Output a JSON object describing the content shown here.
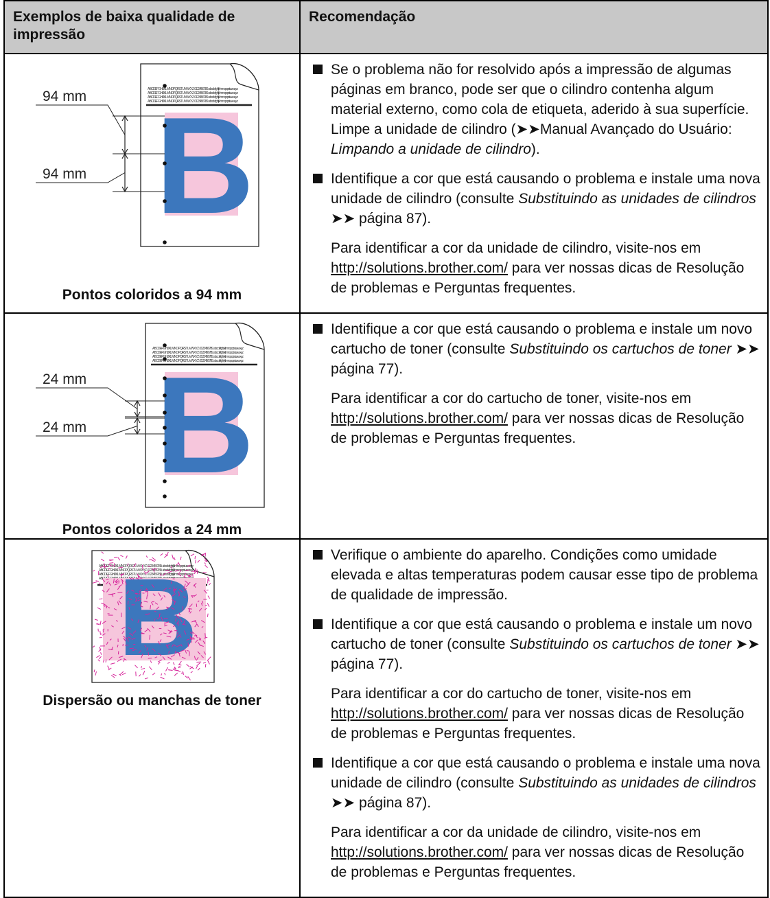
{
  "header": {
    "col1": "Exemplos de baixa qualidade de impressão",
    "col2": "Recomendação"
  },
  "rows": [
    {
      "figure": {
        "letter": "B",
        "sample_text": "ABCDEFGHIJKLMNOPQRSTUVWXYZ. 0123456789. abcdefghijklmnopqrstuvwxyz",
        "labels": [
          "94 mm",
          "94 mm"
        ],
        "caption": "Pontos coloridos a 94 mm"
      },
      "paragraphs": [
        {
          "bullet": true,
          "segments": [
            {
              "text": "Se o problema não for resolvido após a impressão de algumas páginas em branco, pode ser que o cilindro contenha algum material externo, como cola de etiqueta, aderido à sua superfície. Limpe a unidade de cilindro (➤➤Manual Avançado do Usuário: "
            },
            {
              "text": "Limpando a unidade de cilindro",
              "style": "italic"
            },
            {
              "text": ")."
            }
          ]
        },
        {
          "bullet": true,
          "segments": [
            {
              "text": "Identifique a cor que está causando o problema e instale uma nova unidade de cilindro (consulte "
            },
            {
              "text": "Substituindo as unidades de cilindros",
              "style": "italic"
            },
            {
              "text": " ➤➤ página 87)."
            }
          ]
        },
        {
          "bullet": false,
          "segments": [
            {
              "text": "Para identificar a cor da unidade de cilindro, visite-nos em "
            },
            {
              "text": "http://solutions.brother.com/",
              "style": "link"
            },
            {
              "text": " para ver nossas dicas de Resolução de problemas e Perguntas frequentes."
            }
          ]
        }
      ]
    },
    {
      "figure": {
        "letter": "B",
        "sample_text": "ABCDEFGHIJKLMNOPQRSTUVWXYZ. 0123456789. abcdefghijklmnopqrstuvwxyz",
        "labels": [
          "24 mm",
          "24 mm"
        ],
        "caption": "Pontos coloridos a 24 mm"
      },
      "paragraphs": [
        {
          "bullet": true,
          "segments": [
            {
              "text": "Identifique a cor que está causando o problema e instale um novo cartucho de toner (consulte "
            },
            {
              "text": "Substituindo os cartuchos de toner",
              "style": "italic"
            },
            {
              "text": " ➤➤ página 77)."
            }
          ]
        },
        {
          "bullet": false,
          "segments": [
            {
              "text": "Para identificar a cor do cartucho de toner, visite-nos em "
            },
            {
              "text": "http://solutions.brother.com/",
              "style": "link"
            },
            {
              "text": " para ver nossas dicas de Resolução de problemas e Perguntas frequentes."
            }
          ]
        }
      ]
    },
    {
      "figure": {
        "letter": "B",
        "sample_text": "ABCDEFGHIJKLMNOPQRSTUVWXYZ. 0123456789. abcdefghijklmnopqrstuvwxyz",
        "caption": "Dispersão ou manchas de toner"
      },
      "paragraphs": [
        {
          "bullet": true,
          "segments": [
            {
              "text": "Verifique o ambiente do aparelho. Condições como umidade elevada e altas temperaturas podem causar esse tipo de problema de qualidade de impressão."
            }
          ]
        },
        {
          "bullet": true,
          "segments": [
            {
              "text": "Identifique a cor que está causando o problema e instale um novo cartucho de toner (consulte "
            },
            {
              "text": "Substituindo os cartuchos de toner",
              "style": "italic"
            },
            {
              "text": " ➤➤ página 77)."
            }
          ]
        },
        {
          "bullet": false,
          "segments": [
            {
              "text": "Para identificar a cor do cartucho de toner, visite-nos em "
            },
            {
              "text": "http://solutions.brother.com/",
              "style": "link"
            },
            {
              "text": " para ver nossas dicas de Resolução de problemas e Perguntas frequentes."
            }
          ]
        },
        {
          "bullet": true,
          "segments": [
            {
              "text": "Identifique a cor que está causando o problema e instale uma nova unidade de cilindro (consulte "
            },
            {
              "text": "Substituindo as unidades de cilindros",
              "style": "italic"
            },
            {
              "text": " ➤➤ página 87)."
            }
          ]
        },
        {
          "bullet": false,
          "segments": [
            {
              "text": "Para identificar a cor da unidade de cilindro, visite-nos em "
            },
            {
              "text": "http://solutions.brother.com/",
              "style": "link"
            },
            {
              "text": " para ver nossas dicas de Resolução de problemas e Perguntas frequentes."
            }
          ]
        }
      ]
    }
  ]
}
